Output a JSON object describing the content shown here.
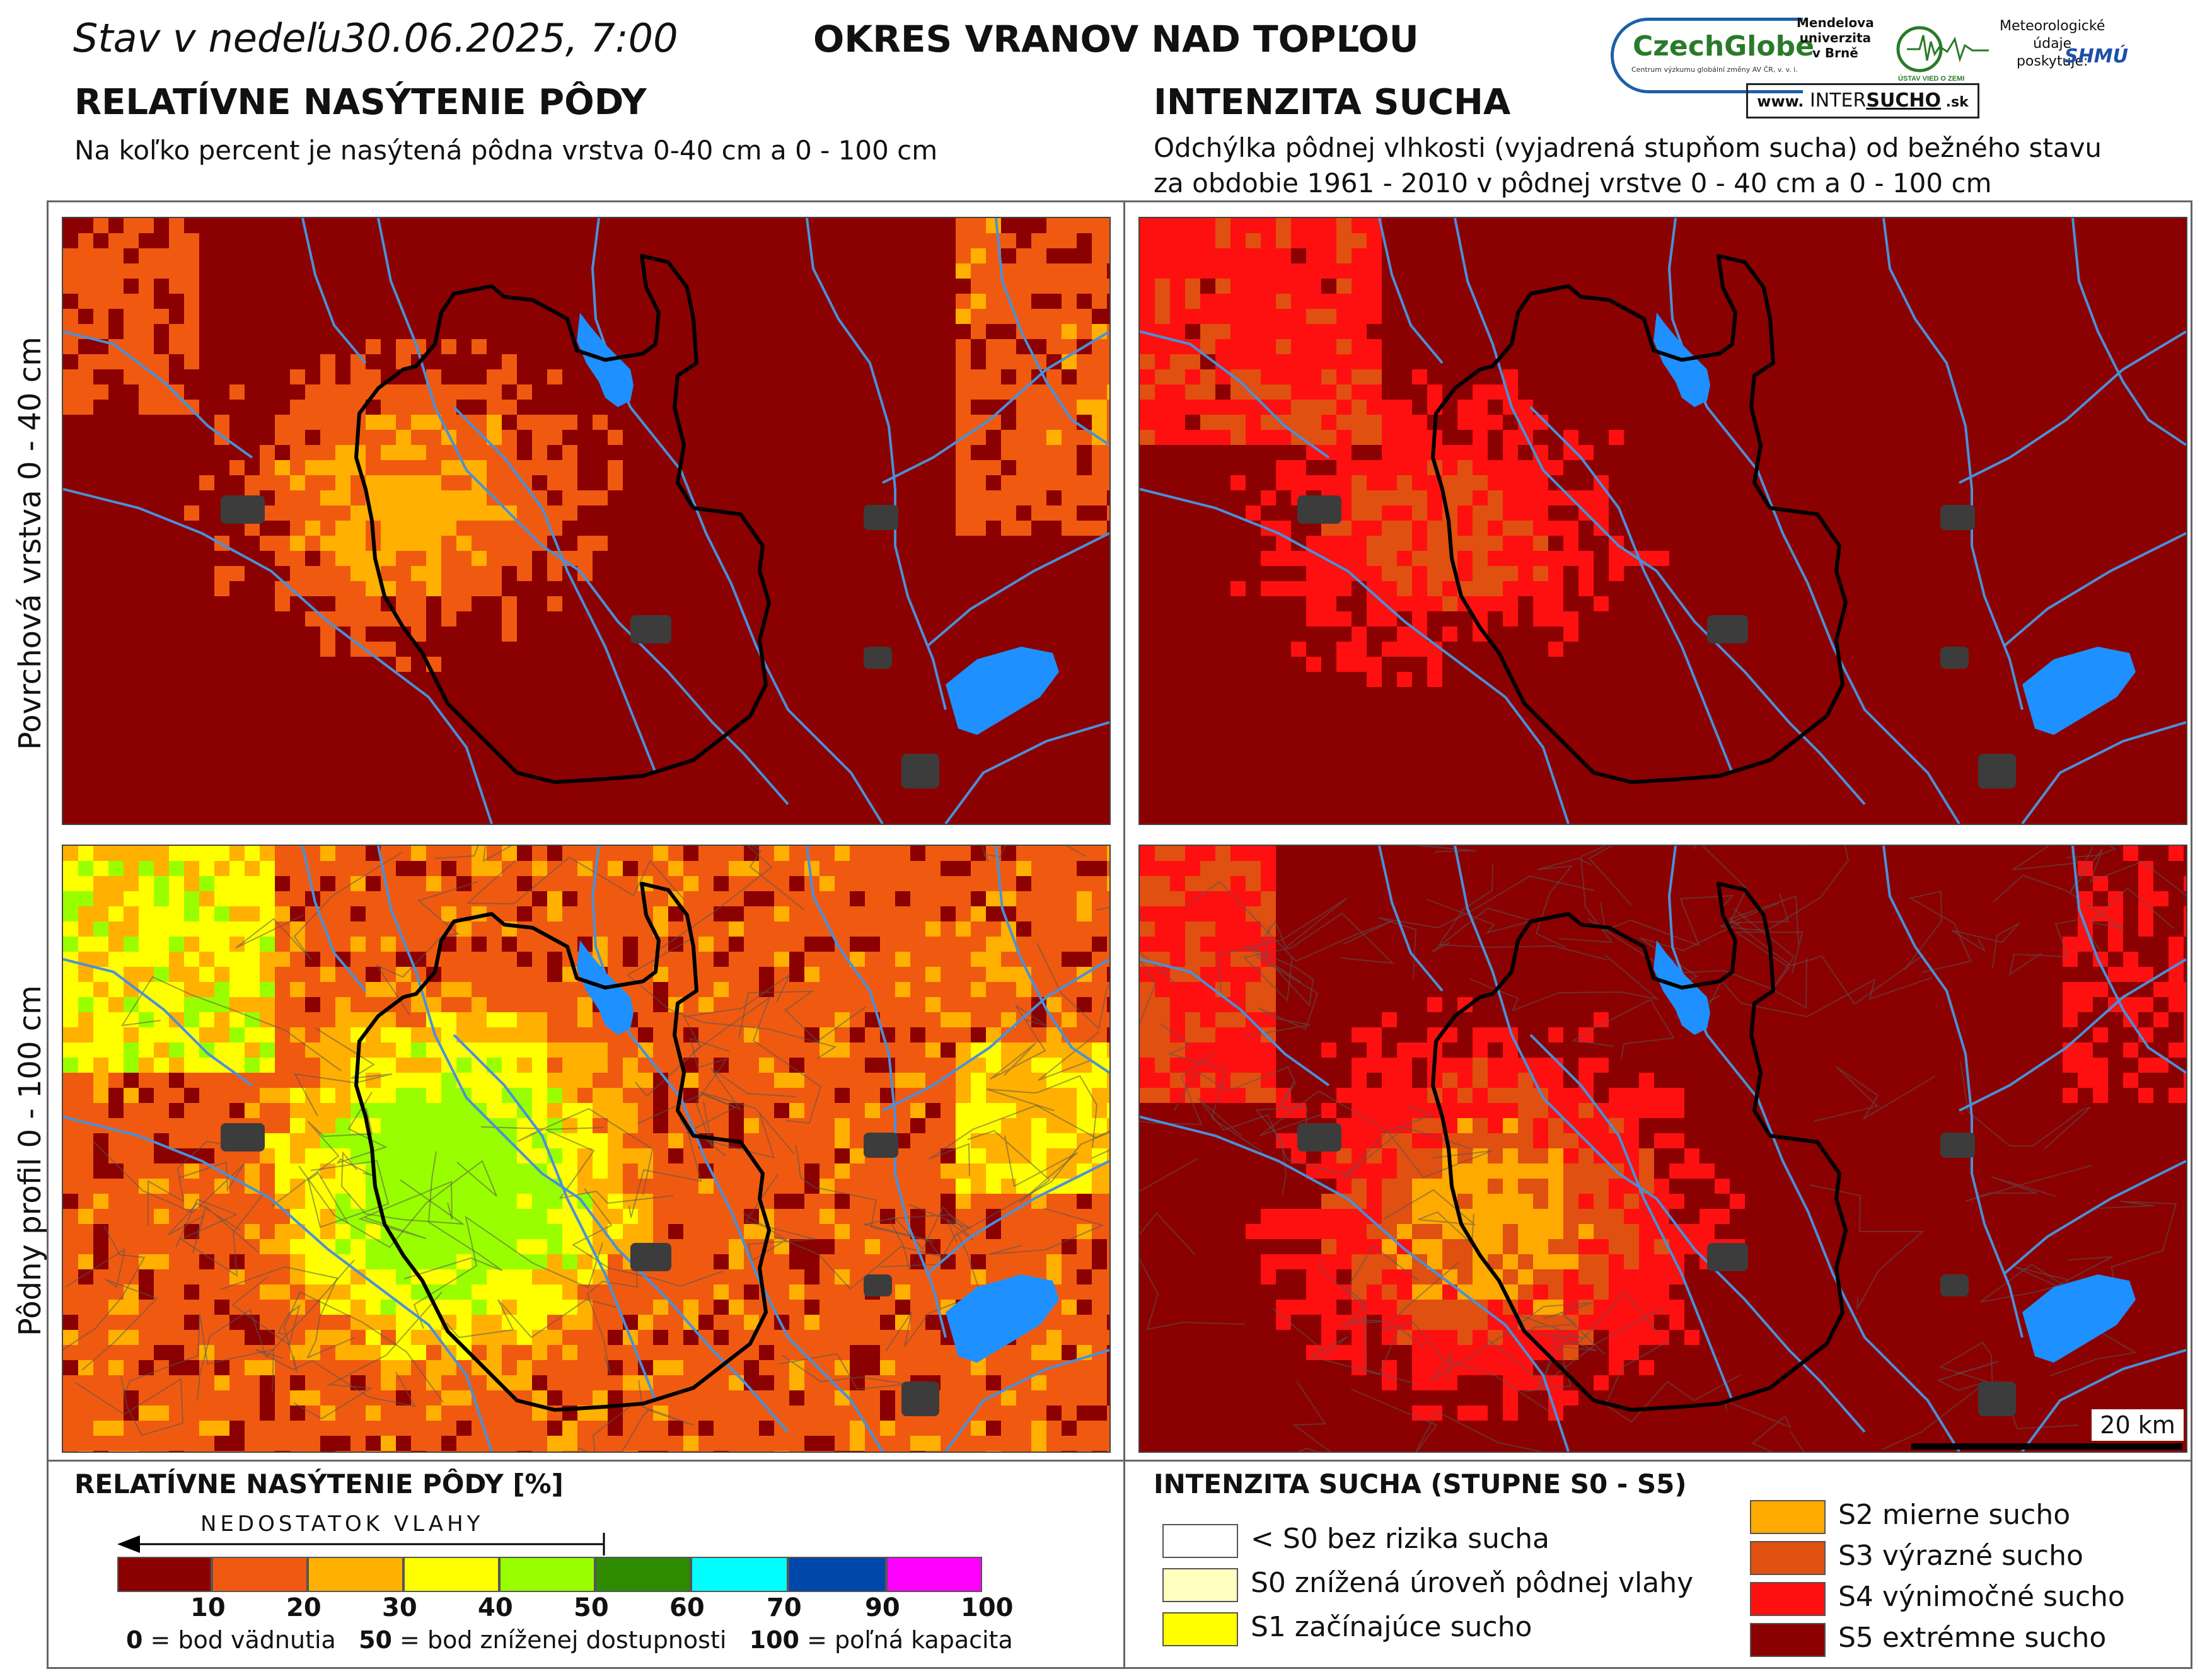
{
  "header": {
    "date_line": "Stav v nedeľu30.06.2025, 7:00",
    "district": "OKRES  VRANOV NAD TOPĽOU"
  },
  "logos": {
    "czechglobe": "CzechGlobe",
    "czechglobe_sub": "Centrum výzkumu globální změny AV ČR, v. v. i.",
    "mendel": "Mendelova\nuniverzita\nv Brně",
    "uvez": "ÚSTAV VIED O ZEMI",
    "meteo": "Meteorologické\núdaje\nposkytuje:",
    "shmu": "SHMÚ",
    "intersucho_prefix": "www.",
    "intersucho_mid": " INTER",
    "intersucho_bold": "SUCHO",
    "intersucho_suffix": " .sk"
  },
  "left_section": {
    "title": "RELATÍVNE NASÝTENIE PÔDY",
    "subtitle": "Na koľko percent je nasýtená pôdna vrstva 0-40 cm a 0 - 100 cm"
  },
  "right_section": {
    "title": "INTENZITA SUCHA",
    "subtitle_line1": "Odchýlka pôdnej vlhkosti (vyjadrená stupňom sucha) od bežného stavu",
    "subtitle_line2": "za obdobie 1961 - 2010 v pôdnej vrstve 0 - 40 cm a 0 - 100 cm"
  },
  "row_labels": {
    "top": "Povrchová vrstva 0 - 40 cm",
    "bottom": "Pôdny profil 0 - 100 cm"
  },
  "scale_bar": "20 km",
  "saturation_legend": {
    "title": "RELATÍVNE NASÝTENIE PÔDY [%]",
    "arrow_label": "NEDOSTATOK VLAHY",
    "colors": [
      "#8b0000",
      "#f05a10",
      "#ffb000",
      "#ffff00",
      "#99ff00",
      "#2e8b00",
      "#00ffff",
      "#0047ab",
      "#ff00ff"
    ],
    "ticks": [
      "10",
      "20",
      "30",
      "40",
      "50",
      "60",
      "70",
      "90",
      "100"
    ],
    "note_0_bold": "0",
    "note_0": " = bod vädnutia",
    "note_50_bold": "50",
    "note_50": " = bod zníženej dostupnosti",
    "note_100_bold": "100",
    "note_100": " = poľná kapacita"
  },
  "drought_legend": {
    "title": "INTENZITA SUCHA (STUPNE S0 - S5)",
    "items": [
      {
        "label": "< S0 bez rizika sucha",
        "color": "#ffffff"
      },
      {
        "label": "S0 znížená úroveň pôdnej vlahy",
        "color": "#ffffc0"
      },
      {
        "label": "S1 začínajúce sucho",
        "color": "#ffff00"
      },
      {
        "label": "S2 mierne sucho",
        "color": "#ffaa00"
      },
      {
        "label": "S3 výrazné sucho",
        "color": "#e05010"
      },
      {
        "label": "S4 výnimočné sucho",
        "color": "#ff1010"
      },
      {
        "label": "S5 extrémne sucho",
        "color": "#8b0000"
      }
    ]
  },
  "map_colors": {
    "water": "#1e90ff",
    "river": "#4a90d9",
    "urban": "#3c3c3c",
    "boundary": "#000000",
    "s5": "#8b0000",
    "s4": "#ff1010",
    "s3": "#e05010",
    "s2": "#ffaa00",
    "sat10": "#8b0000",
    "sat20": "#f05a10",
    "sat30": "#ffb000",
    "sat40": "#ffff00",
    "sat50": "#99ff00"
  }
}
